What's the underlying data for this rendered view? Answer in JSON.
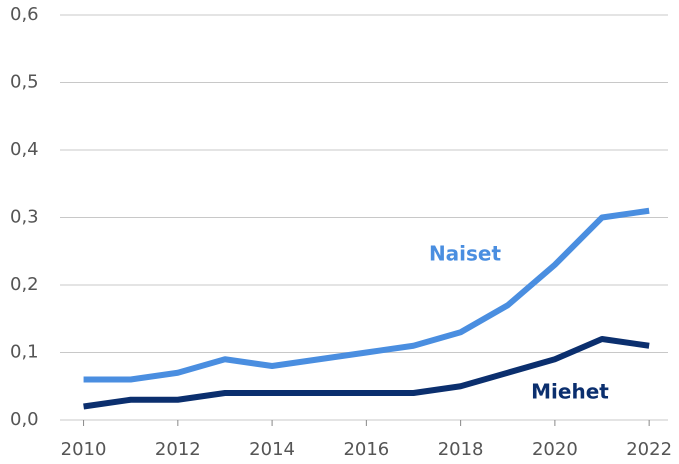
{
  "chart_data": {
    "type": "line",
    "x": [
      2010,
      2011,
      2012,
      2013,
      2014,
      2015,
      2016,
      2017,
      2018,
      2019,
      2020,
      2021,
      2022
    ],
    "series": [
      {
        "name": "Naiset",
        "color": "#4a8ee0",
        "values": [
          0.06,
          0.06,
          0.07,
          0.09,
          0.08,
          0.09,
          0.1,
          0.11,
          0.13,
          0.17,
          0.23,
          0.3,
          0.31
        ]
      },
      {
        "name": "Miehet",
        "color": "#0b2f6e",
        "values": [
          0.02,
          0.03,
          0.03,
          0.04,
          0.04,
          0.04,
          0.04,
          0.04,
          0.05,
          0.07,
          0.09,
          0.12,
          0.11
        ]
      }
    ],
    "xlim": [
      2009.5,
      2022.4
    ],
    "xticks": [
      2010,
      2012,
      2014,
      2016,
      2018,
      2020,
      2022
    ],
    "ylim": [
      0,
      0.6
    ],
    "yticks": [
      {
        "value": 0,
        "label": "0,0"
      },
      {
        "value": 0.1,
        "label": "0,1"
      },
      {
        "value": 0.2,
        "label": "0,2"
      },
      {
        "value": 0.3,
        "label": "0,3"
      },
      {
        "value": 0.4,
        "label": "0,4"
      },
      {
        "value": 0.5,
        "label": "0,5"
      },
      {
        "value": 0.6,
        "label": "0,6"
      }
    ],
    "grid": true
  }
}
